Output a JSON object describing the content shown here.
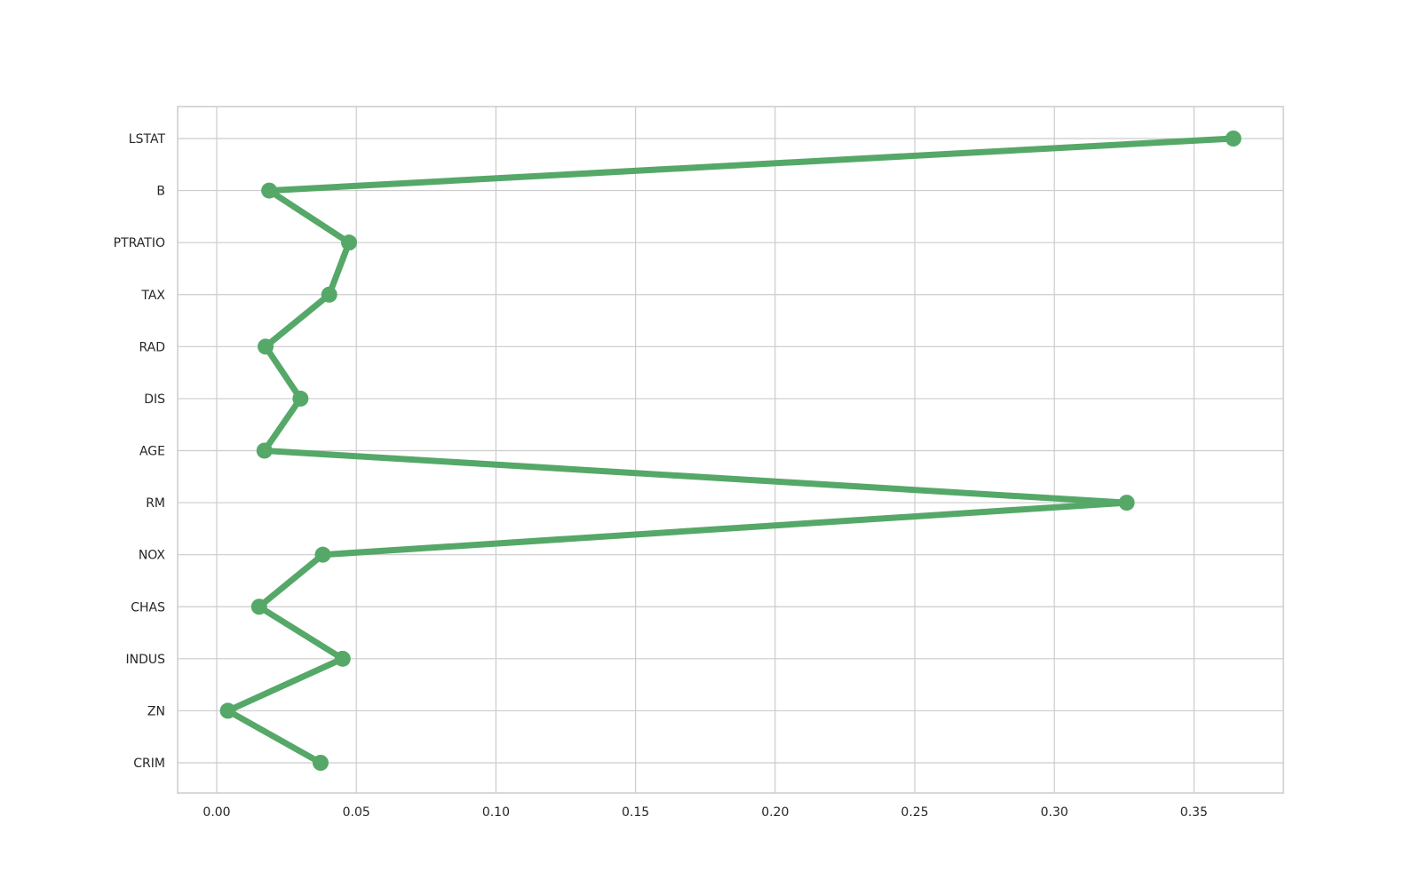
{
  "chart_data": {
    "type": "line",
    "orientation": "horizontal",
    "categories": [
      "CRIM",
      "ZN",
      "INDUS",
      "CHAS",
      "NOX",
      "RM",
      "AGE",
      "DIS",
      "RAD",
      "TAX",
      "PTRATIO",
      "B",
      "LSTAT"
    ],
    "values": [
      0.0372,
      0.004,
      0.0451,
      0.0152,
      0.038,
      0.3259,
      0.0171,
      0.03,
      0.0175,
      0.0403,
      0.0474,
      0.0188,
      0.3641
    ],
    "x_ticks": [
      "0.00",
      "0.05",
      "0.10",
      "0.15",
      "0.20",
      "0.25",
      "0.30",
      "0.35"
    ],
    "xlim": [
      -0.014,
      0.382
    ],
    "title": "",
    "xlabel": "",
    "ylabel": "",
    "grid": true,
    "color": "#55a868"
  }
}
